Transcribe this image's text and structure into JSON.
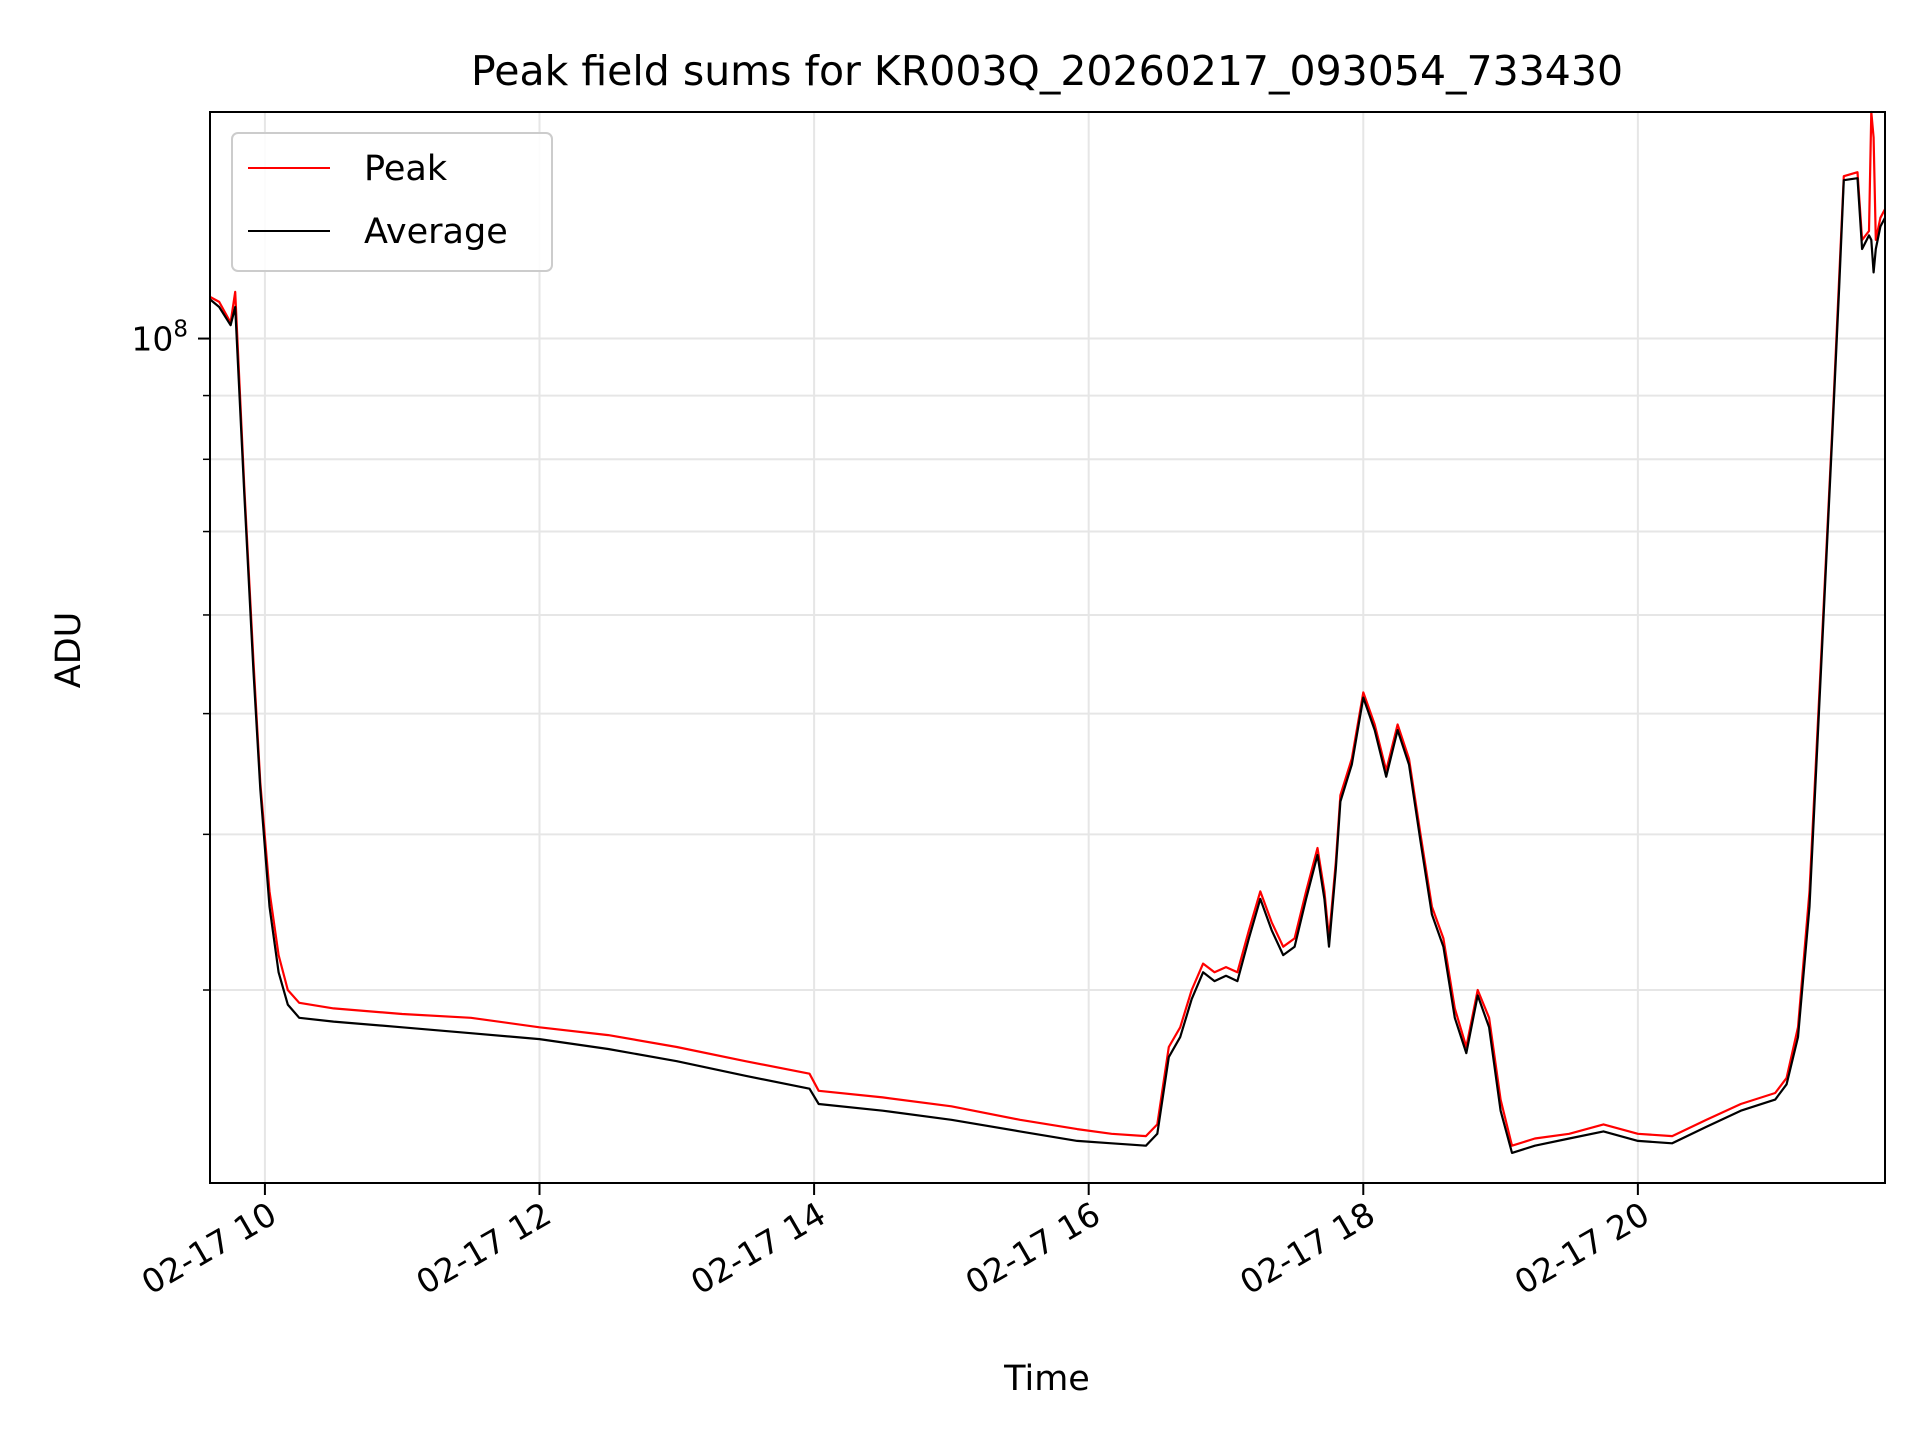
{
  "chart_data": {
    "type": "line",
    "title": "Peak field sums for KR003Q_20260217_093054_733430",
    "xlabel": "Time",
    "ylabel": "ADU",
    "y_scale": "log",
    "grid": true,
    "legend_position": "top-left",
    "xlim": [
      "2026-02-17 09:36",
      "2026-02-17 21:48"
    ],
    "ylim": [
      21000000,
      152000000
    ],
    "x_ticks": [
      {
        "value": "2026-02-17 10:00",
        "label": "02-17 10"
      },
      {
        "value": "2026-02-17 12:00",
        "label": "02-17 12"
      },
      {
        "value": "2026-02-17 14:00",
        "label": "02-17 14"
      },
      {
        "value": "2026-02-17 16:00",
        "label": "02-17 16"
      },
      {
        "value": "2026-02-17 18:00",
        "label": "02-17 18"
      },
      {
        "value": "2026-02-17 20:00",
        "label": "02-17 20"
      }
    ],
    "y_major_ticks": [
      {
        "value": 100000000,
        "label_base": "10",
        "label_exp": "8"
      }
    ],
    "y_minor_ticks": [
      30000000,
      40000000,
      50000000,
      60000000,
      70000000,
      80000000,
      90000000
    ],
    "series": [
      {
        "name": "Peak",
        "color": "#ff0000",
        "points": [
          [
            "2026-02-17 09:36",
            108000000
          ],
          [
            "2026-02-17 09:40",
            107000000
          ],
          [
            "2026-02-17 09:45",
            103000000
          ],
          [
            "2026-02-17 09:47",
            109000000
          ],
          [
            "2026-02-17 09:51",
            76000000
          ],
          [
            "2026-02-17 09:55",
            55000000
          ],
          [
            "2026-02-17 09:58",
            44000000
          ],
          [
            "2026-02-17 10:02",
            36000000
          ],
          [
            "2026-02-17 10:06",
            32000000
          ],
          [
            "2026-02-17 10:10",
            30000000
          ],
          [
            "2026-02-17 10:15",
            29300000
          ],
          [
            "2026-02-17 10:30",
            29000000
          ],
          [
            "2026-02-17 11:00",
            28700000
          ],
          [
            "2026-02-17 11:30",
            28500000
          ],
          [
            "2026-02-17 12:00",
            28000000
          ],
          [
            "2026-02-17 12:30",
            27600000
          ],
          [
            "2026-02-17 13:00",
            27000000
          ],
          [
            "2026-02-17 13:30",
            26300000
          ],
          [
            "2026-02-17 13:58",
            25700000
          ],
          [
            "2026-02-17 14:02",
            24900000
          ],
          [
            "2026-02-17 14:30",
            24600000
          ],
          [
            "2026-02-17 15:00",
            24200000
          ],
          [
            "2026-02-17 15:30",
            23600000
          ],
          [
            "2026-02-17 15:55",
            23200000
          ],
          [
            "2026-02-17 16:10",
            23000000
          ],
          [
            "2026-02-17 16:25",
            22900000
          ],
          [
            "2026-02-17 16:30",
            23400000
          ],
          [
            "2026-02-17 16:35",
            27000000
          ],
          [
            "2026-02-17 16:40",
            28000000
          ],
          [
            "2026-02-17 16:45",
            30000000
          ],
          [
            "2026-02-17 16:50",
            31500000
          ],
          [
            "2026-02-17 16:55",
            31000000
          ],
          [
            "2026-02-17 17:00",
            31300000
          ],
          [
            "2026-02-17 17:05",
            31000000
          ],
          [
            "2026-02-17 17:10",
            33500000
          ],
          [
            "2026-02-17 17:15",
            36000000
          ],
          [
            "2026-02-17 17:20",
            34000000
          ],
          [
            "2026-02-17 17:25",
            32500000
          ],
          [
            "2026-02-17 17:30",
            33000000
          ],
          [
            "2026-02-17 17:35",
            36000000
          ],
          [
            "2026-02-17 17:40",
            39000000
          ],
          [
            "2026-02-17 17:43",
            36000000
          ],
          [
            "2026-02-17 17:45",
            33000000
          ],
          [
            "2026-02-17 17:48",
            38000000
          ],
          [
            "2026-02-17 17:50",
            43000000
          ],
          [
            "2026-02-17 17:55",
            46000000
          ],
          [
            "2026-02-17 18:00",
            52000000
          ],
          [
            "2026-02-17 18:05",
            49000000
          ],
          [
            "2026-02-17 18:10",
            45000000
          ],
          [
            "2026-02-17 18:15",
            49000000
          ],
          [
            "2026-02-17 18:20",
            46000000
          ],
          [
            "2026-02-17 18:25",
            40000000
          ],
          [
            "2026-02-17 18:30",
            35000000
          ],
          [
            "2026-02-17 18:35",
            33000000
          ],
          [
            "2026-02-17 18:40",
            29000000
          ],
          [
            "2026-02-17 18:45",
            27000000
          ],
          [
            "2026-02-17 18:50",
            30000000
          ],
          [
            "2026-02-17 18:55",
            28500000
          ],
          [
            "2026-02-17 19:00",
            24500000
          ],
          [
            "2026-02-17 19:05",
            22500000
          ],
          [
            "2026-02-17 19:15",
            22800000
          ],
          [
            "2026-02-17 19:30",
            23000000
          ],
          [
            "2026-02-17 19:45",
            23400000
          ],
          [
            "2026-02-17 20:00",
            23000000
          ],
          [
            "2026-02-17 20:15",
            22900000
          ],
          [
            "2026-02-17 20:30",
            23600000
          ],
          [
            "2026-02-17 20:45",
            24300000
          ],
          [
            "2026-02-17 21:00",
            24800000
          ],
          [
            "2026-02-17 21:05",
            25500000
          ],
          [
            "2026-02-17 21:10",
            28000000
          ],
          [
            "2026-02-17 21:15",
            36000000
          ],
          [
            "2026-02-17 21:20",
            55000000
          ],
          [
            "2026-02-17 21:25",
            85000000
          ],
          [
            "2026-02-17 21:28",
            112000000
          ],
          [
            "2026-02-17 21:30",
            135000000
          ],
          [
            "2026-02-17 21:36",
            136000000
          ],
          [
            "2026-02-17 21:38",
            120000000
          ],
          [
            "2026-02-17 21:41",
            122000000
          ],
          [
            "2026-02-17 21:42",
            152000000
          ],
          [
            "2026-02-17 21:43",
            145000000
          ],
          [
            "2026-02-17 21:44",
            120000000
          ],
          [
            "2026-02-17 21:46",
            125000000
          ],
          [
            "2026-02-17 21:48",
            127000000
          ]
        ]
      },
      {
        "name": "Average",
        "color": "#000000",
        "points": [
          [
            "2026-02-17 09:36",
            107500000
          ],
          [
            "2026-02-17 09:40",
            106000000
          ],
          [
            "2026-02-17 09:45",
            102500000
          ],
          [
            "2026-02-17 09:47",
            106000000
          ],
          [
            "2026-02-17 09:51",
            75000000
          ],
          [
            "2026-02-17 09:55",
            54000000
          ],
          [
            "2026-02-17 09:58",
            43500000
          ],
          [
            "2026-02-17 10:02",
            35000000
          ],
          [
            "2026-02-17 10:06",
            31000000
          ],
          [
            "2026-02-17 10:10",
            29200000
          ],
          [
            "2026-02-17 10:15",
            28500000
          ],
          [
            "2026-02-17 10:30",
            28300000
          ],
          [
            "2026-02-17 11:00",
            28000000
          ],
          [
            "2026-02-17 11:30",
            27700000
          ],
          [
            "2026-02-17 12:00",
            27400000
          ],
          [
            "2026-02-17 12:30",
            26900000
          ],
          [
            "2026-02-17 13:00",
            26300000
          ],
          [
            "2026-02-17 13:30",
            25600000
          ],
          [
            "2026-02-17 13:58",
            25000000
          ],
          [
            "2026-02-17 14:02",
            24300000
          ],
          [
            "2026-02-17 14:30",
            24000000
          ],
          [
            "2026-02-17 15:00",
            23600000
          ],
          [
            "2026-02-17 15:30",
            23100000
          ],
          [
            "2026-02-17 15:55",
            22700000
          ],
          [
            "2026-02-17 16:10",
            22600000
          ],
          [
            "2026-02-17 16:25",
            22500000
          ],
          [
            "2026-02-17 16:30",
            23000000
          ],
          [
            "2026-02-17 16:35",
            26500000
          ],
          [
            "2026-02-17 16:40",
            27500000
          ],
          [
            "2026-02-17 16:45",
            29500000
          ],
          [
            "2026-02-17 16:50",
            31000000
          ],
          [
            "2026-02-17 16:55",
            30500000
          ],
          [
            "2026-02-17 17:00",
            30800000
          ],
          [
            "2026-02-17 17:05",
            30500000
          ],
          [
            "2026-02-17 17:10",
            33000000
          ],
          [
            "2026-02-17 17:15",
            35500000
          ],
          [
            "2026-02-17 17:20",
            33500000
          ],
          [
            "2026-02-17 17:25",
            32000000
          ],
          [
            "2026-02-17 17:30",
            32500000
          ],
          [
            "2026-02-17 17:35",
            35500000
          ],
          [
            "2026-02-17 17:40",
            38500000
          ],
          [
            "2026-02-17 17:43",
            35500000
          ],
          [
            "2026-02-17 17:45",
            32500000
          ],
          [
            "2026-02-17 17:48",
            37500000
          ],
          [
            "2026-02-17 17:50",
            42500000
          ],
          [
            "2026-02-17 17:55",
            45500000
          ],
          [
            "2026-02-17 18:00",
            51500000
          ],
          [
            "2026-02-17 18:05",
            48500000
          ],
          [
            "2026-02-17 18:10",
            44500000
          ],
          [
            "2026-02-17 18:15",
            48500000
          ],
          [
            "2026-02-17 18:20",
            45500000
          ],
          [
            "2026-02-17 18:25",
            39500000
          ],
          [
            "2026-02-17 18:30",
            34500000
          ],
          [
            "2026-02-17 18:35",
            32500000
          ],
          [
            "2026-02-17 18:40",
            28500000
          ],
          [
            "2026-02-17 18:45",
            26700000
          ],
          [
            "2026-02-17 18:50",
            29700000
          ],
          [
            "2026-02-17 18:55",
            28000000
          ],
          [
            "2026-02-17 19:00",
            24000000
          ],
          [
            "2026-02-17 19:05",
            22200000
          ],
          [
            "2026-02-17 19:15",
            22500000
          ],
          [
            "2026-02-17 19:30",
            22800000
          ],
          [
            "2026-02-17 19:45",
            23100000
          ],
          [
            "2026-02-17 20:00",
            22700000
          ],
          [
            "2026-02-17 20:15",
            22600000
          ],
          [
            "2026-02-17 20:30",
            23300000
          ],
          [
            "2026-02-17 20:45",
            24000000
          ],
          [
            "2026-02-17 21:00",
            24500000
          ],
          [
            "2026-02-17 21:05",
            25200000
          ],
          [
            "2026-02-17 21:10",
            27500000
          ],
          [
            "2026-02-17 21:15",
            35000000
          ],
          [
            "2026-02-17 21:20",
            54000000
          ],
          [
            "2026-02-17 21:25",
            84000000
          ],
          [
            "2026-02-17 21:28",
            110000000
          ],
          [
            "2026-02-17 21:30",
            134000000
          ],
          [
            "2026-02-17 21:36",
            134500000
          ],
          [
            "2026-02-17 21:38",
            118000000
          ],
          [
            "2026-02-17 21:41",
            121000000
          ],
          [
            "2026-02-17 21:42",
            120000000
          ],
          [
            "2026-02-17 21:43",
            113000000
          ],
          [
            "2026-02-17 21:44",
            118000000
          ],
          [
            "2026-02-17 21:46",
            123000000
          ],
          [
            "2026-02-17 21:48",
            125000000
          ]
        ]
      }
    ]
  }
}
